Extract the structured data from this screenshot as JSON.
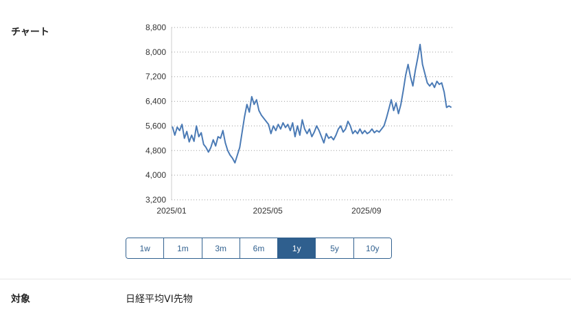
{
  "chart_section": {
    "label": "チャート"
  },
  "chart_data": {
    "type": "line",
    "title": "",
    "xlabel": "",
    "ylabel": "",
    "ylim": [
      3200,
      8800
    ],
    "y_ticks": [
      "3,200",
      "4,000",
      "4,800",
      "5,600",
      "6,400",
      "7,200",
      "8,000",
      "8,800"
    ],
    "x_ticks": [
      "2025/01",
      "2025/05",
      "2025/09"
    ],
    "grid": "horizontal dotted",
    "line_color": "#4a7ab5",
    "series": [
      {
        "values": [
          [
            "2025/01/02",
            5580
          ],
          [
            "2025/01/05",
            5300
          ],
          [
            "2025/01/08",
            5560
          ],
          [
            "2025/01/11",
            5450
          ],
          [
            "2025/01/14",
            5650
          ],
          [
            "2025/01/17",
            5200
          ],
          [
            "2025/01/20",
            5420
          ],
          [
            "2025/01/23",
            5080
          ],
          [
            "2025/01/26",
            5300
          ],
          [
            "2025/01/29",
            5100
          ],
          [
            "2025/02/01",
            5600
          ],
          [
            "2025/02/04",
            5250
          ],
          [
            "2025/02/07",
            5380
          ],
          [
            "2025/02/10",
            5000
          ],
          [
            "2025/02/13",
            4900
          ],
          [
            "2025/02/16",
            4750
          ],
          [
            "2025/02/19",
            4900
          ],
          [
            "2025/02/22",
            5150
          ],
          [
            "2025/02/25",
            4950
          ],
          [
            "2025/02/28",
            5250
          ],
          [
            "2025/03/03",
            5200
          ],
          [
            "2025/03/06",
            5450
          ],
          [
            "2025/03/09",
            5050
          ],
          [
            "2025/03/12",
            4800
          ],
          [
            "2025/03/15",
            4650
          ],
          [
            "2025/03/18",
            4550
          ],
          [
            "2025/03/21",
            4400
          ],
          [
            "2025/03/24",
            4650
          ],
          [
            "2025/03/27",
            4900
          ],
          [
            "2025/03/30",
            5400
          ],
          [
            "2025/04/02",
            5900
          ],
          [
            "2025/04/05",
            6300
          ],
          [
            "2025/04/08",
            6050
          ],
          [
            "2025/04/11",
            6550
          ],
          [
            "2025/04/14",
            6300
          ],
          [
            "2025/04/17",
            6450
          ],
          [
            "2025/04/20",
            6100
          ],
          [
            "2025/04/23",
            5950
          ],
          [
            "2025/04/26",
            5850
          ],
          [
            "2025/04/29",
            5750
          ],
          [
            "2025/05/02",
            5650
          ],
          [
            "2025/05/05",
            5350
          ],
          [
            "2025/05/08",
            5600
          ],
          [
            "2025/05/11",
            5450
          ],
          [
            "2025/05/14",
            5650
          ],
          [
            "2025/05/17",
            5500
          ],
          [
            "2025/05/20",
            5700
          ],
          [
            "2025/05/23",
            5550
          ],
          [
            "2025/05/26",
            5650
          ],
          [
            "2025/05/29",
            5450
          ],
          [
            "2025/06/01",
            5700
          ],
          [
            "2025/06/04",
            5250
          ],
          [
            "2025/06/07",
            5600
          ],
          [
            "2025/06/10",
            5300
          ],
          [
            "2025/06/13",
            5800
          ],
          [
            "2025/06/16",
            5500
          ],
          [
            "2025/06/19",
            5350
          ],
          [
            "2025/06/22",
            5500
          ],
          [
            "2025/06/25",
            5250
          ],
          [
            "2025/06/28",
            5400
          ],
          [
            "2025/07/01",
            5600
          ],
          [
            "2025/07/04",
            5450
          ],
          [
            "2025/07/07",
            5250
          ],
          [
            "2025/07/10",
            5050
          ],
          [
            "2025/07/13",
            5350
          ],
          [
            "2025/07/16",
            5200
          ],
          [
            "2025/07/19",
            5250
          ],
          [
            "2025/07/22",
            5150
          ],
          [
            "2025/07/25",
            5300
          ],
          [
            "2025/07/28",
            5500
          ],
          [
            "2025/07/31",
            5600
          ],
          [
            "2025/08/03",
            5400
          ],
          [
            "2025/08/06",
            5500
          ],
          [
            "2025/08/09",
            5750
          ],
          [
            "2025/08/12",
            5600
          ],
          [
            "2025/08/15",
            5350
          ],
          [
            "2025/08/18",
            5450
          ],
          [
            "2025/08/21",
            5350
          ],
          [
            "2025/08/24",
            5500
          ],
          [
            "2025/08/27",
            5350
          ],
          [
            "2025/08/30",
            5450
          ],
          [
            "2025/09/02",
            5350
          ],
          [
            "2025/09/05",
            5400
          ],
          [
            "2025/09/08",
            5500
          ],
          [
            "2025/09/11",
            5380
          ],
          [
            "2025/09/14",
            5450
          ],
          [
            "2025/09/17",
            5400
          ],
          [
            "2025/09/20",
            5500
          ],
          [
            "2025/09/23",
            5600
          ],
          [
            "2025/09/26",
            5850
          ],
          [
            "2025/09/29",
            6150
          ],
          [
            "2025/10/02",
            6450
          ],
          [
            "2025/10/05",
            6100
          ],
          [
            "2025/10/08",
            6350
          ],
          [
            "2025/10/11",
            6000
          ],
          [
            "2025/10/14",
            6300
          ],
          [
            "2025/10/17",
            6750
          ],
          [
            "2025/10/20",
            7250
          ],
          [
            "2025/10/23",
            7600
          ],
          [
            "2025/10/26",
            7200
          ],
          [
            "2025/10/29",
            6900
          ],
          [
            "2025/11/01",
            7400
          ],
          [
            "2025/11/04",
            7800
          ],
          [
            "2025/11/07",
            8250
          ],
          [
            "2025/11/10",
            7600
          ],
          [
            "2025/11/13",
            7300
          ],
          [
            "2025/11/16",
            7000
          ],
          [
            "2025/11/19",
            6900
          ],
          [
            "2025/11/22",
            7000
          ],
          [
            "2025/11/25",
            6850
          ],
          [
            "2025/11/28",
            7050
          ],
          [
            "2025/12/01",
            6950
          ],
          [
            "2025/12/04",
            7000
          ],
          [
            "2025/12/07",
            6700
          ],
          [
            "2025/12/10",
            6200
          ],
          [
            "2025/12/13",
            6250
          ],
          [
            "2025/12/16",
            6200
          ]
        ]
      }
    ]
  },
  "range_buttons": [
    {
      "label": "1w",
      "active": false
    },
    {
      "label": "1m",
      "active": false
    },
    {
      "label": "3m",
      "active": false
    },
    {
      "label": "6m",
      "active": false
    },
    {
      "label": "1y",
      "active": true
    },
    {
      "label": "5y",
      "active": false
    },
    {
      "label": "10y",
      "active": false
    }
  ],
  "target_section": {
    "label": "対象",
    "value": "日経平均VI先物"
  }
}
